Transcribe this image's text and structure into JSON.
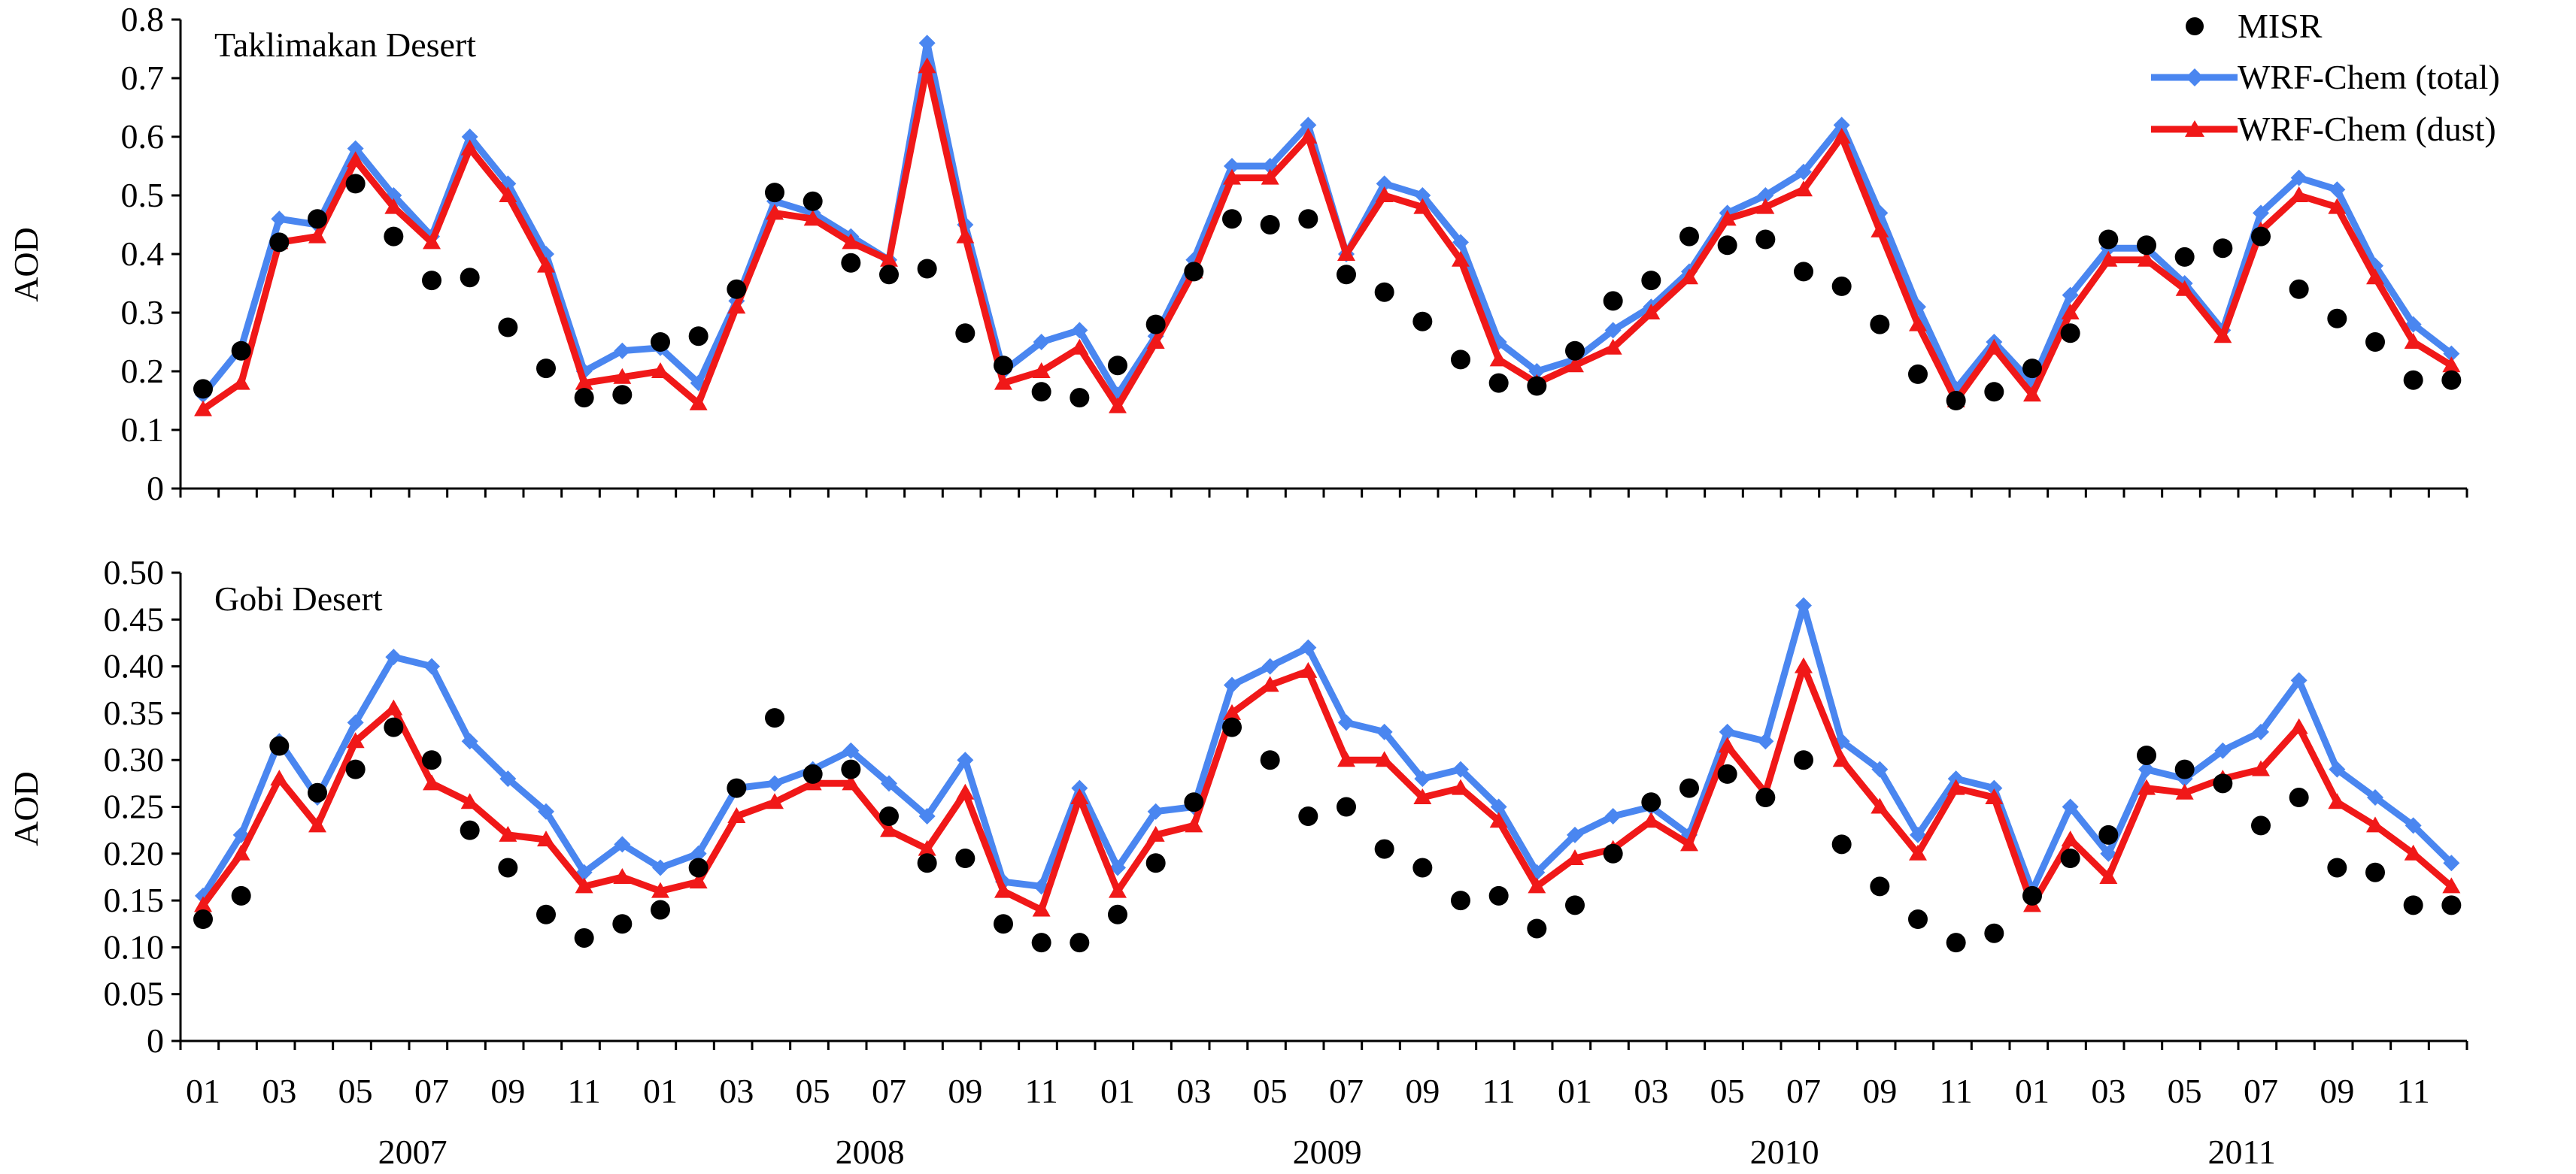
{
  "colors": {
    "misr": "#000000",
    "total": "#4a86f0",
    "dust": "#f01818"
  },
  "legend": {
    "misr": "MISR",
    "total": "WRF-Chem (total)",
    "dust": "WRF-Chem (dust)"
  },
  "x_axis": {
    "month_labels": [
      "01",
      "03",
      "05",
      "07",
      "09",
      "11",
      "01",
      "03",
      "05",
      "07",
      "09",
      "11",
      "01",
      "03",
      "05",
      "07",
      "09",
      "11",
      "01",
      "03",
      "05",
      "07",
      "09",
      "11",
      "01",
      "03",
      "05",
      "07",
      "09",
      "11"
    ],
    "years": [
      "2007",
      "2008",
      "2009",
      "2010",
      "2011"
    ]
  },
  "chart_data": [
    {
      "type": "line",
      "title": "Taklimakan Desert",
      "ylabel": "AOD",
      "ylim": [
        0,
        0.8
      ],
      "yticks": [
        "0",
        "0.1",
        "0.2",
        "0.3",
        "0.4",
        "0.5",
        "0.6",
        "0.7",
        "0.8"
      ],
      "x": "monthly, Jan 2007 - Dec 2011 (60 months)",
      "series": [
        {
          "name": "MISR",
          "style": "dot",
          "values": [
            0.17,
            0.235,
            0.42,
            0.46,
            0.52,
            0.43,
            0.355,
            0.36,
            0.275,
            0.205,
            0.155,
            0.16,
            0.25,
            0.26,
            0.34,
            0.505,
            0.49,
            0.385,
            0.365,
            0.375,
            0.265,
            0.21,
            0.165,
            0.155,
            0.21,
            0.28,
            0.37,
            0.46,
            0.45,
            0.46,
            0.365,
            0.335,
            0.285,
            0.22,
            0.18,
            0.175,
            0.235,
            0.32,
            0.355,
            0.43,
            0.415,
            0.425,
            0.37,
            0.345,
            0.28,
            0.195,
            0.15,
            0.165,
            0.205,
            0.265,
            0.425,
            0.415,
            0.395,
            0.41,
            0.43,
            0.34,
            0.29,
            0.25,
            0.185,
            0.185
          ]
        },
        {
          "name": "WRF-Chem (total)",
          "style": "diamond-line",
          "values": [
            0.16,
            0.24,
            0.46,
            0.45,
            0.58,
            0.5,
            0.43,
            0.6,
            0.52,
            0.4,
            0.2,
            0.235,
            0.24,
            0.18,
            0.32,
            0.49,
            0.47,
            0.43,
            0.39,
            0.76,
            0.45,
            0.2,
            0.25,
            0.27,
            0.16,
            0.26,
            0.39,
            0.55,
            0.55,
            0.62,
            0.4,
            0.52,
            0.5,
            0.42,
            0.25,
            0.2,
            0.22,
            0.27,
            0.31,
            0.37,
            0.47,
            0.5,
            0.54,
            0.62,
            0.47,
            0.31,
            0.17,
            0.25,
            0.18,
            0.33,
            0.41,
            0.41,
            0.35,
            0.27,
            0.47,
            0.53,
            0.51,
            0.38,
            0.28,
            0.23
          ]
        },
        {
          "name": "WRF-Chem (dust)",
          "style": "triangle-line",
          "values": [
            0.135,
            0.18,
            0.42,
            0.43,
            0.56,
            0.48,
            0.42,
            0.58,
            0.5,
            0.38,
            0.18,
            0.19,
            0.2,
            0.145,
            0.31,
            0.47,
            0.46,
            0.42,
            0.39,
            0.72,
            0.43,
            0.18,
            0.2,
            0.24,
            0.14,
            0.25,
            0.37,
            0.53,
            0.53,
            0.6,
            0.4,
            0.5,
            0.48,
            0.39,
            0.22,
            0.18,
            0.21,
            0.24,
            0.3,
            0.36,
            0.46,
            0.48,
            0.51,
            0.6,
            0.44,
            0.28,
            0.15,
            0.24,
            0.16,
            0.3,
            0.39,
            0.39,
            0.34,
            0.26,
            0.44,
            0.5,
            0.48,
            0.36,
            0.25,
            0.21
          ]
        }
      ]
    },
    {
      "type": "line",
      "title": "Gobi Desert",
      "ylabel": "AOD",
      "ylim": [
        0,
        0.5
      ],
      "yticks": [
        "0",
        "0.05",
        "0.10",
        "0.15",
        "0.20",
        "0.25",
        "0.30",
        "0.35",
        "0.40",
        "0.45",
        "0.50"
      ],
      "x": "monthly, Jan 2007 - Dec 2011 (60 months)",
      "series": [
        {
          "name": "MISR",
          "style": "dot",
          "values": [
            0.13,
            0.155,
            0.315,
            0.265,
            0.29,
            0.335,
            0.3,
            0.225,
            0.185,
            0.135,
            0.11,
            0.125,
            0.14,
            0.185,
            0.27,
            0.345,
            0.285,
            0.29,
            0.24,
            0.19,
            0.195,
            0.125,
            0.105,
            0.105,
            0.135,
            0.19,
            0.255,
            0.335,
            0.3,
            0.24,
            0.25,
            0.205,
            0.185,
            0.15,
            0.155,
            0.12,
            0.145,
            0.2,
            0.255,
            0.27,
            0.285,
            0.26,
            0.3,
            0.21,
            0.165,
            0.13,
            0.105,
            0.115,
            0.155,
            0.195,
            0.22,
            0.305,
            0.29,
            0.275,
            0.23,
            0.26,
            0.185,
            0.18,
            0.145,
            0.145
          ]
        },
        {
          "name": "WRF-Chem (total)",
          "style": "diamond-line",
          "values": [
            0.155,
            0.22,
            0.32,
            0.26,
            0.34,
            0.41,
            0.4,
            0.32,
            0.28,
            0.245,
            0.18,
            0.21,
            0.185,
            0.2,
            0.27,
            0.275,
            0.29,
            0.31,
            0.275,
            0.24,
            0.3,
            0.17,
            0.165,
            0.27,
            0.185,
            0.245,
            0.25,
            0.38,
            0.4,
            0.42,
            0.34,
            0.33,
            0.28,
            0.29,
            0.25,
            0.18,
            0.22,
            0.24,
            0.25,
            0.22,
            0.33,
            0.32,
            0.465,
            0.32,
            0.29,
            0.22,
            0.28,
            0.27,
            0.16,
            0.25,
            0.2,
            0.29,
            0.28,
            0.31,
            0.33,
            0.385,
            0.29,
            0.26,
            0.23,
            0.19
          ]
        },
        {
          "name": "WRF-Chem (dust)",
          "style": "triangle-line",
          "values": [
            0.145,
            0.2,
            0.28,
            0.23,
            0.32,
            0.355,
            0.275,
            0.255,
            0.22,
            0.215,
            0.165,
            0.175,
            0.16,
            0.17,
            0.24,
            0.255,
            0.275,
            0.275,
            0.225,
            0.205,
            0.265,
            0.16,
            0.14,
            0.26,
            0.16,
            0.22,
            0.23,
            0.35,
            0.38,
            0.395,
            0.3,
            0.3,
            0.26,
            0.27,
            0.235,
            0.165,
            0.195,
            0.205,
            0.235,
            0.21,
            0.315,
            0.265,
            0.4,
            0.3,
            0.25,
            0.2,
            0.27,
            0.26,
            0.145,
            0.215,
            0.175,
            0.27,
            0.265,
            0.28,
            0.29,
            0.335,
            0.255,
            0.23,
            0.2,
            0.165
          ]
        }
      ]
    }
  ]
}
